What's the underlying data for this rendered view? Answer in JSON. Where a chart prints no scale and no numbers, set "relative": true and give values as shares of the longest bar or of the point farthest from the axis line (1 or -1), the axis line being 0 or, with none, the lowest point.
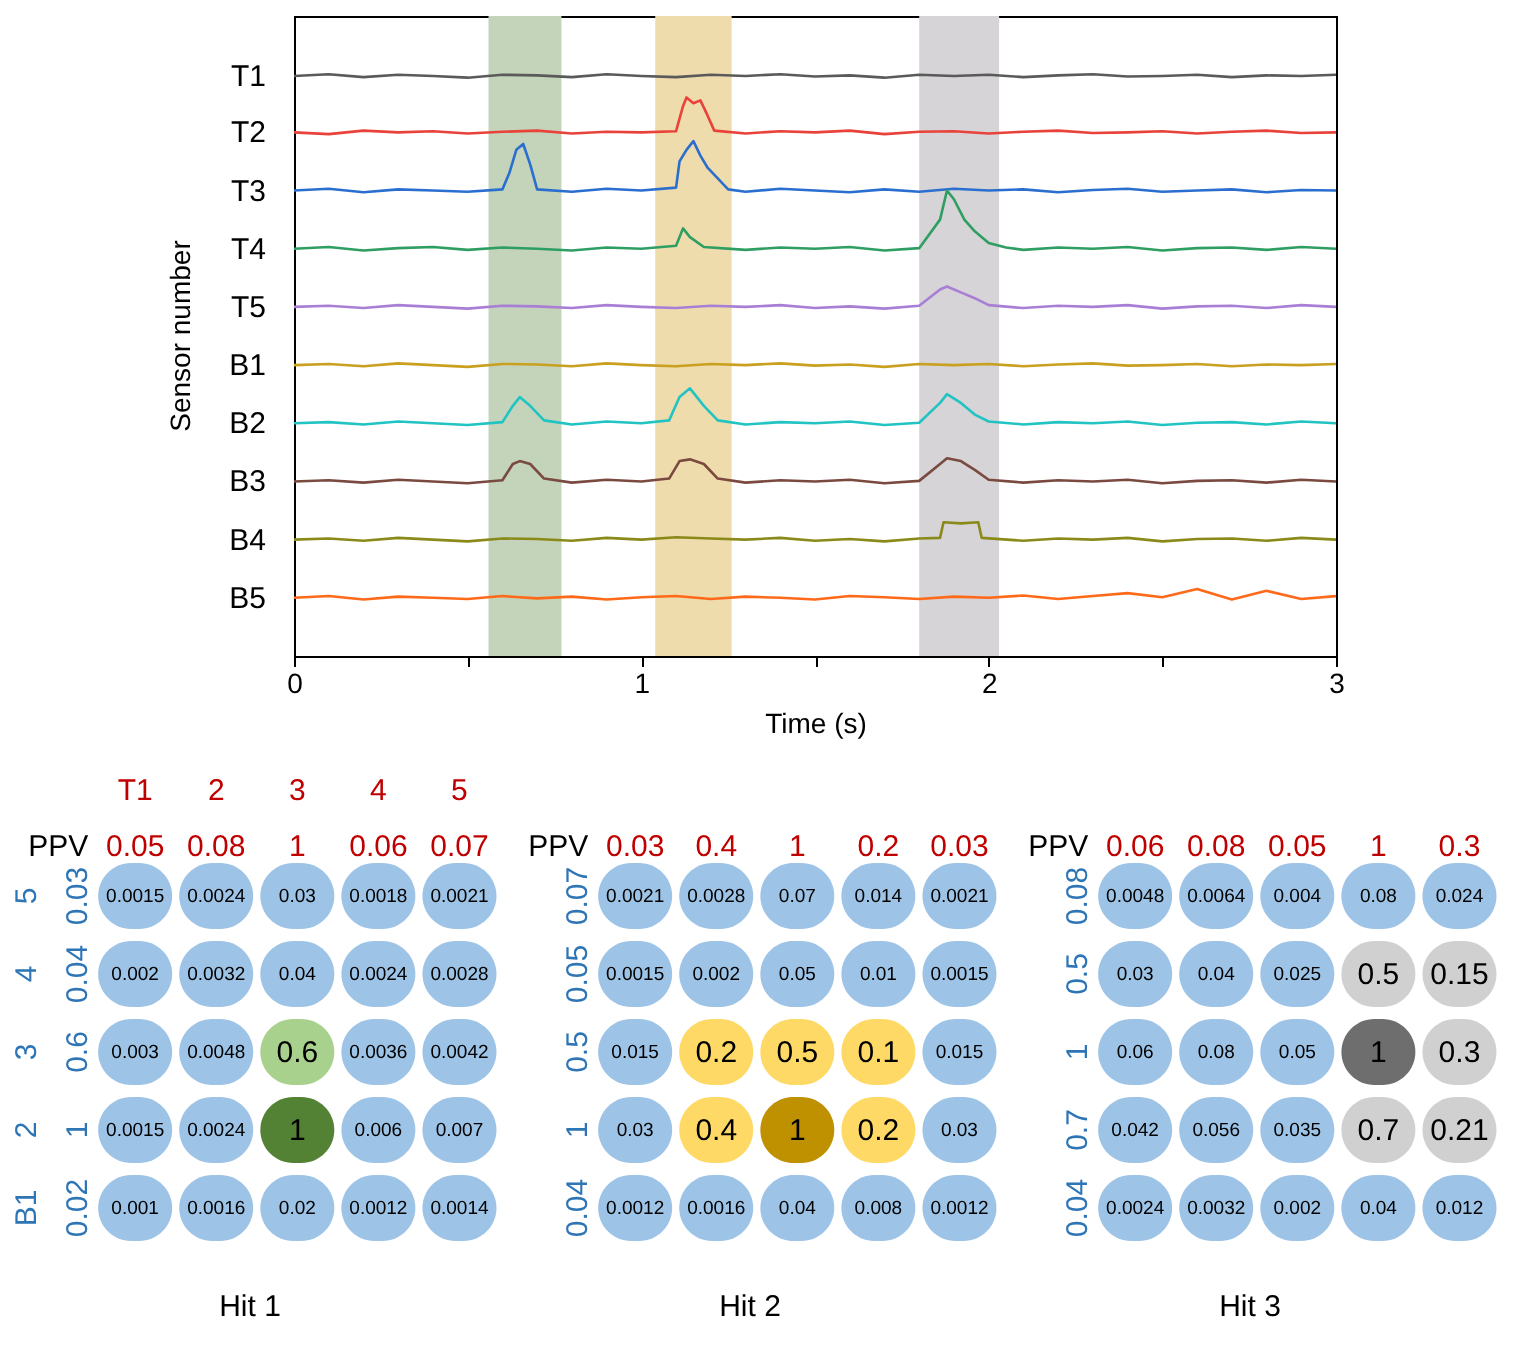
{
  "chart_data": [
    {
      "type": "line",
      "xlabel": "Time (s)",
      "ylabel": "Sensor number",
      "xlim": [
        0,
        3
      ],
      "relative": true,
      "xticks": [
        0,
        {
          "value": 0.5,
          "label": null
        },
        1,
        {
          "value": 1.5,
          "label": null
        },
        2,
        {
          "value": 2.5,
          "label": null
        },
        3
      ],
      "bands": [
        {
          "axis": "x",
          "from": 0.56,
          "to": 0.77,
          "color": "#c3d4ba"
        },
        {
          "axis": "x",
          "from": 1.04,
          "to": 1.26,
          "color": "#efdcac"
        },
        {
          "axis": "x",
          "from": 1.8,
          "to": 2.03,
          "color": "#d6d4d6"
        }
      ],
      "series": [
        {
          "name": "T1",
          "color": "#5a5a5a",
          "x": [
            0,
            0.1,
            0.2,
            0.3,
            0.4,
            0.5,
            0.6,
            0.7,
            0.8,
            0.9,
            1.0,
            1.1,
            1.2,
            1.3,
            1.4,
            1.5,
            1.6,
            1.7,
            1.8,
            1.9,
            2.0,
            2.1,
            2.2,
            2.3,
            2.4,
            2.5,
            2.6,
            2.7,
            2.8,
            2.9,
            3.0
          ],
          "values": [
            0.997,
            1,
            0.995,
            0.999,
            0.997,
            0.994,
            0.999,
            0.998,
            0.995,
            1,
            0.997,
            0.995,
            0.999,
            0.997,
            1,
            0.996,
            0.998,
            0.994,
            0.999,
            0.997,
            0.999,
            0.995,
            0.998,
            1,
            0.996,
            0.997,
            0.999,
            0.995,
            0.998,
            0.997,
            0.999
          ]
        },
        {
          "name": "T2",
          "color": "#e8423a",
          "x": [
            0,
            0.1,
            0.2,
            0.3,
            0.4,
            0.5,
            0.6,
            0.7,
            0.8,
            0.9,
            1.0,
            1.1,
            1.12,
            1.13,
            1.15,
            1.17,
            1.19,
            1.21,
            1.3,
            1.4,
            1.5,
            1.6,
            1.7,
            1.8,
            1.9,
            2.0,
            2.1,
            2.2,
            2.3,
            2.4,
            2.5,
            2.6,
            2.7,
            2.8,
            2.9,
            3.0
          ],
          "values": [
            0.9,
            0.897,
            0.903,
            0.9,
            0.902,
            0.898,
            0.901,
            0.903,
            0.898,
            0.901,
            0.9,
            0.902,
            0.945,
            0.96,
            0.95,
            0.955,
            0.93,
            0.903,
            0.898,
            0.902,
            0.9,
            0.903,
            0.897,
            0.901,
            0.902,
            0.898,
            0.901,
            0.903,
            0.899,
            0.9,
            0.902,
            0.898,
            0.901,
            0.903,
            0.899,
            0.9
          ]
        },
        {
          "name": "T3",
          "color": "#2a6fcf",
          "x": [
            0,
            0.1,
            0.2,
            0.3,
            0.4,
            0.5,
            0.6,
            0.62,
            0.64,
            0.66,
            0.68,
            0.7,
            0.8,
            0.9,
            1.0,
            1.1,
            1.11,
            1.13,
            1.15,
            1.17,
            1.19,
            1.25,
            1.3,
            1.4,
            1.5,
            1.6,
            1.7,
            1.8,
            1.9,
            2.0,
            2.1,
            2.2,
            2.3,
            2.4,
            2.5,
            2.6,
            2.7,
            2.8,
            2.9,
            3.0
          ],
          "values": [
            0.8,
            0.803,
            0.797,
            0.802,
            0.8,
            0.798,
            0.802,
            0.83,
            0.87,
            0.88,
            0.845,
            0.802,
            0.798,
            0.803,
            0.8,
            0.805,
            0.85,
            0.87,
            0.885,
            0.86,
            0.84,
            0.802,
            0.798,
            0.803,
            0.8,
            0.797,
            0.802,
            0.798,
            0.803,
            0.8,
            0.802,
            0.797,
            0.801,
            0.803,
            0.798,
            0.8,
            0.802,
            0.797,
            0.801,
            0.8
          ]
        },
        {
          "name": "T4",
          "color": "#2f9e62",
          "x": [
            0,
            0.1,
            0.2,
            0.3,
            0.4,
            0.5,
            0.6,
            0.7,
            0.8,
            0.9,
            1.0,
            1.1,
            1.12,
            1.14,
            1.18,
            1.3,
            1.4,
            1.5,
            1.6,
            1.7,
            1.8,
            1.86,
            1.88,
            1.9,
            1.93,
            1.96,
            2.0,
            2.05,
            2.1,
            2.2,
            2.3,
            2.4,
            2.5,
            2.6,
            2.7,
            2.8,
            2.9,
            3.0
          ],
          "values": [
            0.7,
            0.703,
            0.697,
            0.701,
            0.703,
            0.698,
            0.702,
            0.7,
            0.697,
            0.702,
            0.7,
            0.705,
            0.735,
            0.72,
            0.703,
            0.698,
            0.702,
            0.7,
            0.703,
            0.697,
            0.701,
            0.75,
            0.8,
            0.785,
            0.75,
            0.73,
            0.71,
            0.702,
            0.698,
            0.702,
            0.7,
            0.703,
            0.697,
            0.701,
            0.702,
            0.698,
            0.703,
            0.7
          ]
        },
        {
          "name": "T5",
          "color": "#a97fd6",
          "x": [
            0,
            0.1,
            0.2,
            0.3,
            0.4,
            0.5,
            0.6,
            0.7,
            0.8,
            0.9,
            1.0,
            1.1,
            1.2,
            1.3,
            1.4,
            1.5,
            1.6,
            1.7,
            1.8,
            1.86,
            1.88,
            1.92,
            1.96,
            2.0,
            2.1,
            2.2,
            2.3,
            2.4,
            2.5,
            2.6,
            2.7,
            2.8,
            2.9,
            3.0
          ],
          "values": [
            0.6,
            0.602,
            0.598,
            0.603,
            0.6,
            0.597,
            0.602,
            0.601,
            0.598,
            0.603,
            0.6,
            0.598,
            0.602,
            0.6,
            0.603,
            0.598,
            0.601,
            0.597,
            0.602,
            0.63,
            0.635,
            0.625,
            0.615,
            0.603,
            0.598,
            0.602,
            0.6,
            0.603,
            0.597,
            0.601,
            0.602,
            0.598,
            0.603,
            0.6
          ]
        },
        {
          "name": "B1",
          "color": "#c9a020",
          "x": [
            0,
            0.1,
            0.2,
            0.3,
            0.4,
            0.5,
            0.6,
            0.7,
            0.8,
            0.9,
            1.0,
            1.1,
            1.2,
            1.3,
            1.4,
            1.5,
            1.6,
            1.7,
            1.8,
            1.9,
            2.0,
            2.1,
            2.2,
            2.3,
            2.4,
            2.5,
            2.6,
            2.7,
            2.8,
            2.9,
            3.0
          ],
          "values": [
            0.5,
            0.502,
            0.498,
            0.503,
            0.5,
            0.497,
            0.502,
            0.501,
            0.498,
            0.503,
            0.5,
            0.498,
            0.502,
            0.5,
            0.503,
            0.499,
            0.501,
            0.497,
            0.502,
            0.5,
            0.502,
            0.498,
            0.501,
            0.503,
            0.499,
            0.5,
            0.502,
            0.498,
            0.501,
            0.5,
            0.502
          ]
        },
        {
          "name": "B2",
          "color": "#22c3c3",
          "x": [
            0,
            0.1,
            0.2,
            0.3,
            0.4,
            0.5,
            0.6,
            0.63,
            0.65,
            0.68,
            0.72,
            0.8,
            0.9,
            1.0,
            1.08,
            1.11,
            1.14,
            1.18,
            1.22,
            1.3,
            1.4,
            1.5,
            1.6,
            1.7,
            1.8,
            1.86,
            1.88,
            1.92,
            1.96,
            2.0,
            2.1,
            2.2,
            2.3,
            2.4,
            2.5,
            2.6,
            2.7,
            2.8,
            2.9,
            3.0
          ],
          "values": [
            0.4,
            0.402,
            0.398,
            0.403,
            0.4,
            0.397,
            0.402,
            0.43,
            0.445,
            0.43,
            0.405,
            0.398,
            0.403,
            0.4,
            0.405,
            0.445,
            0.46,
            0.43,
            0.405,
            0.398,
            0.402,
            0.4,
            0.403,
            0.397,
            0.401,
            0.435,
            0.45,
            0.435,
            0.415,
            0.403,
            0.398,
            0.402,
            0.4,
            0.403,
            0.397,
            0.401,
            0.402,
            0.398,
            0.403,
            0.4
          ]
        },
        {
          "name": "B3",
          "color": "#7a4a40",
          "x": [
            0,
            0.1,
            0.2,
            0.3,
            0.4,
            0.5,
            0.6,
            0.63,
            0.65,
            0.68,
            0.72,
            0.8,
            0.9,
            1.0,
            1.08,
            1.11,
            1.14,
            1.18,
            1.22,
            1.3,
            1.4,
            1.5,
            1.6,
            1.7,
            1.8,
            1.86,
            1.88,
            1.92,
            1.96,
            2.0,
            2.1,
            2.2,
            2.3,
            2.4,
            2.5,
            2.6,
            2.7,
            2.8,
            2.9,
            3.0
          ],
          "values": [
            0.3,
            0.302,
            0.298,
            0.303,
            0.3,
            0.297,
            0.302,
            0.33,
            0.335,
            0.33,
            0.305,
            0.298,
            0.303,
            0.3,
            0.305,
            0.335,
            0.338,
            0.33,
            0.305,
            0.298,
            0.302,
            0.3,
            0.303,
            0.297,
            0.301,
            0.33,
            0.34,
            0.335,
            0.32,
            0.303,
            0.298,
            0.302,
            0.3,
            0.303,
            0.297,
            0.301,
            0.302,
            0.298,
            0.303,
            0.3
          ]
        },
        {
          "name": "B4",
          "color": "#8a8a1a",
          "x": [
            0,
            0.1,
            0.2,
            0.3,
            0.4,
            0.5,
            0.6,
            0.7,
            0.8,
            0.9,
            1.0,
            1.1,
            1.2,
            1.3,
            1.4,
            1.5,
            1.6,
            1.7,
            1.8,
            1.86,
            1.87,
            1.92,
            1.97,
            1.98,
            2.1,
            2.2,
            2.3,
            2.4,
            2.5,
            2.6,
            2.7,
            2.8,
            2.9,
            3.0
          ],
          "values": [
            0.2,
            0.202,
            0.198,
            0.203,
            0.2,
            0.197,
            0.202,
            0.201,
            0.198,
            0.203,
            0.2,
            0.204,
            0.202,
            0.2,
            0.203,
            0.198,
            0.201,
            0.197,
            0.202,
            0.203,
            0.23,
            0.228,
            0.23,
            0.203,
            0.198,
            0.202,
            0.2,
            0.203,
            0.197,
            0.201,
            0.202,
            0.198,
            0.203,
            0.2
          ]
        },
        {
          "name": "B5",
          "color": "#ff6a1a",
          "x": [
            0,
            0.1,
            0.2,
            0.3,
            0.4,
            0.5,
            0.6,
            0.7,
            0.8,
            0.9,
            1.0,
            1.1,
            1.2,
            1.3,
            1.4,
            1.5,
            1.6,
            1.7,
            1.8,
            1.9,
            2.0,
            2.1,
            2.2,
            2.3,
            2.4,
            2.5,
            2.6,
            2.7,
            2.8,
            2.9,
            3.0
          ],
          "values": [
            0.1,
            0.103,
            0.097,
            0.102,
            0.1,
            0.098,
            0.103,
            0.099,
            0.102,
            0.097,
            0.101,
            0.103,
            0.098,
            0.102,
            0.1,
            0.097,
            0.103,
            0.101,
            0.098,
            0.102,
            0.1,
            0.104,
            0.098,
            0.103,
            0.108,
            0.101,
            0.115,
            0.097,
            0.112,
            0.098,
            0.103
          ]
        }
      ]
    },
    {
      "type": "heatmap",
      "xlabel": "Hit 1",
      "categories": [
        "T1",
        "2",
        "3",
        "4",
        "5"
      ],
      "y_categories": [
        "5",
        "4",
        "3",
        "2",
        "B1"
      ],
      "y2_categories": [
        "0.03",
        "0.04",
        "0.6",
        "1",
        "0.02"
      ],
      "annotations": [
        "PPV",
        "0.05",
        "0.08",
        "1",
        "0.06",
        "0.07"
      ],
      "colors": [
        "#9dc3e6",
        "#a9d18e",
        "#548235"
      ],
      "cells": [
        [
          0.0015,
          0.0024,
          0.03,
          0.0018,
          0.0021
        ],
        [
          0.002,
          0.0032,
          0.04,
          0.0024,
          0.0028
        ],
        [
          0.003,
          0.0048,
          0.6,
          0.0036,
          0.0042
        ],
        [
          0.0015,
          0.0024,
          1,
          0.006,
          0.007
        ],
        [
          0.001,
          0.0016,
          0.02,
          0.0012,
          0.0014
        ]
      ],
      "cell_labels": [
        [
          "0.0015",
          "0.0024",
          "0.03",
          "0.0018",
          "0.0021"
        ],
        [
          "0.002",
          "0.0032",
          "0.04",
          "0.0024",
          "0.0028"
        ],
        [
          "0.003",
          "0.0048",
          "0.6",
          "0.0036",
          "0.0042"
        ],
        [
          "0.0015",
          "0.0024",
          "1",
          "0.006",
          "0.007"
        ],
        [
          "0.001",
          "0.0016",
          "0.02",
          "0.0012",
          "0.0014"
        ]
      ]
    },
    {
      "type": "heatmap",
      "xlabel": "Hit 2",
      "categories": [
        "0.03",
        "0.4",
        "1",
        "0.2",
        "0.03"
      ],
      "y_categories": [
        "0.07",
        "0.05",
        "0.5",
        "1",
        "0.04"
      ],
      "annotations": [
        "PPV"
      ],
      "colors": [
        "#9dc3e6",
        "#ffd966",
        "#bf9000"
      ],
      "cells": [
        [
          0.0021,
          0.0028,
          0.07,
          0.014,
          0.0021
        ],
        [
          0.0015,
          0.002,
          0.05,
          0.01,
          0.0015
        ],
        [
          0.015,
          0.2,
          0.5,
          0.1,
          0.015
        ],
        [
          0.03,
          0.4,
          1,
          0.2,
          0.03
        ],
        [
          0.0012,
          0.0016,
          0.04,
          0.008,
          0.0012
        ]
      ],
      "cell_labels": [
        [
          "0.0021",
          "0.0028",
          "0.07",
          "0.014",
          "0.0021"
        ],
        [
          "0.0015",
          "0.002",
          "0.05",
          "0.01",
          "0.0015"
        ],
        [
          "0.015",
          "0.2",
          "0.5",
          "0.1",
          "0.015"
        ],
        [
          "0.03",
          "0.4",
          "1",
          "0.2",
          "0.03"
        ],
        [
          "0.0012",
          "0.0016",
          "0.04",
          "0.008",
          "0.0012"
        ]
      ]
    },
    {
      "type": "heatmap",
      "xlabel": "Hit 3",
      "categories": [
        "0.06",
        "0.08",
        "0.05",
        "1",
        "0.3"
      ],
      "y_categories": [
        "0.08",
        "0.5",
        "1",
        "0.7",
        "0.04"
      ],
      "annotations": [
        "PPV"
      ],
      "colors": [
        "#9dc3e6",
        "#d0d0d0",
        "#6e6e6e"
      ],
      "cells": [
        [
          0.0048,
          0.0064,
          0.004,
          0.08,
          0.024
        ],
        [
          0.03,
          0.04,
          0.025,
          0.5,
          0.15
        ],
        [
          0.06,
          0.08,
          0.05,
          1,
          0.3
        ],
        [
          0.042,
          0.056,
          0.035,
          0.7,
          0.21
        ],
        [
          0.0024,
          0.0032,
          0.002,
          0.04,
          0.012
        ]
      ],
      "cell_labels": [
        [
          "0.0048",
          "0.0064",
          "0.004",
          "0.08",
          "0.024"
        ],
        [
          "0.03",
          "0.04",
          "0.025",
          "0.5",
          "0.15"
        ],
        [
          "0.06",
          "0.08",
          "0.05",
          "1",
          "0.3"
        ],
        [
          "0.042",
          "0.056",
          "0.035",
          "0.7",
          "0.21"
        ],
        [
          "0.0024",
          "0.0032",
          "0.002",
          "0.04",
          "0.012"
        ]
      ]
    }
  ]
}
